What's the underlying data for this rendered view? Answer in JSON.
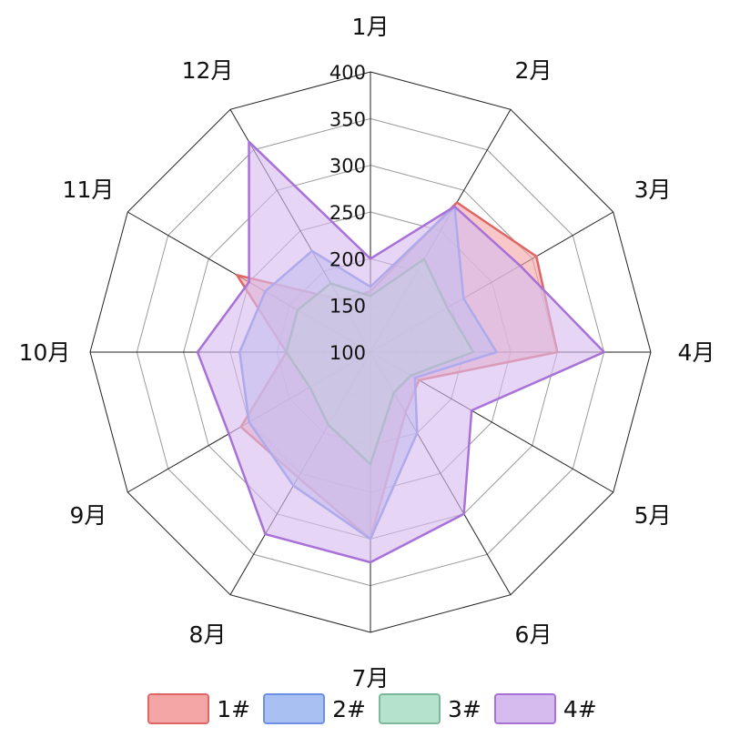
{
  "chart_data": {
    "type": "radar",
    "categories": [
      "1月",
      "2月",
      "3月",
      "4月",
      "5月",
      "6月",
      "7月",
      "8月",
      "9月",
      "10月",
      "11月",
      "12月"
    ],
    "rlim": [
      100,
      400
    ],
    "ticks": [
      "100",
      "150",
      "200",
      "250",
      "300",
      "350",
      "400"
    ],
    "grid": true,
    "legend_position": "bottom",
    "series": [
      {
        "name": "1#",
        "values": [
          165,
          285,
          305,
          300,
          160,
          175,
          300,
          255,
          260,
          190,
          265,
          165
        ],
        "color": "#e06666",
        "fill": "#f4a6a6"
      },
      {
        "name": "2#",
        "values": [
          170,
          280,
          215,
          235,
          155,
          200,
          300,
          265,
          250,
          240,
          230,
          225
        ],
        "color": "#6d8fe6",
        "fill": "#a9c1f2"
      },
      {
        "name": "3#",
        "values": [
          160,
          215,
          195,
          210,
          150,
          150,
          220,
          190,
          175,
          190,
          190,
          185
        ],
        "color": "#7db89b",
        "fill": "#b5e2cc"
      },
      {
        "name": "4#",
        "values": [
          200,
          280,
          285,
          350,
          225,
          300,
          325,
          325,
          275,
          285,
          250,
          360
        ],
        "color": "#a871d8",
        "fill": "#d6bcee"
      }
    ]
  }
}
